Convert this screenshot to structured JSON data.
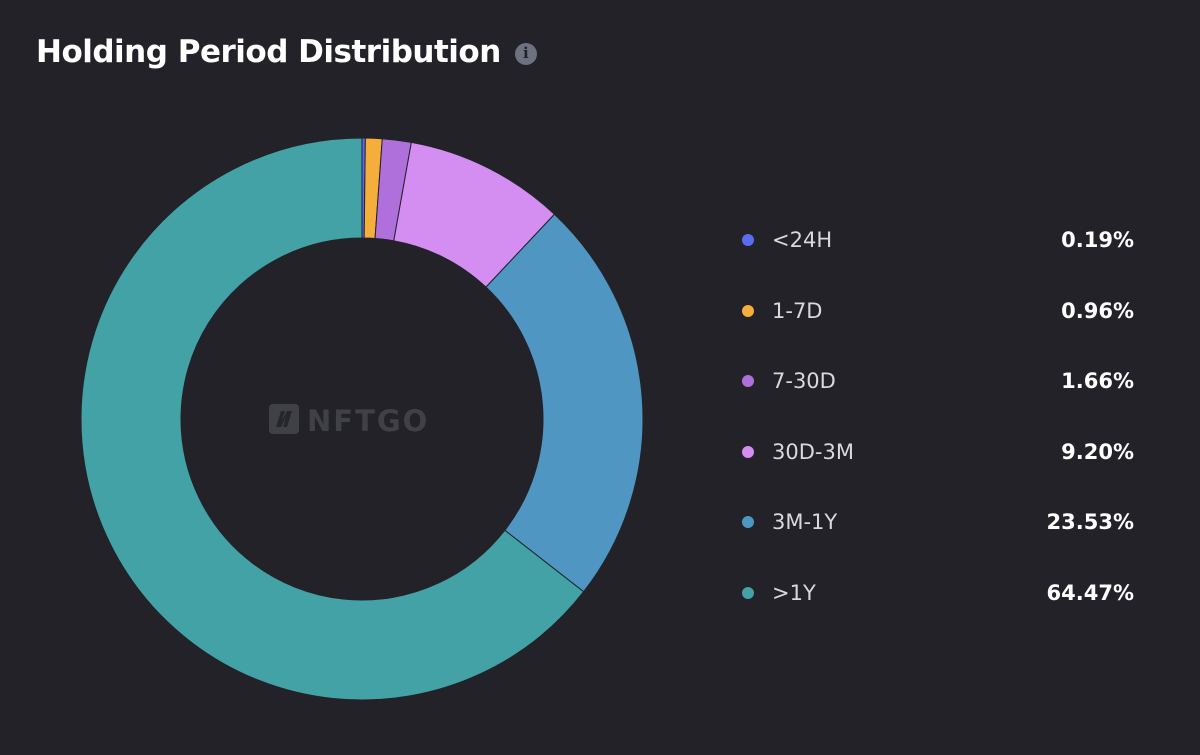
{
  "header": {
    "title": "Holding Period Distribution",
    "info_icon": "info-icon"
  },
  "watermark": {
    "text": "NFTGO"
  },
  "chart_data": {
    "type": "pie",
    "variant": "donut",
    "title": "Holding Period Distribution",
    "legend_position": "right",
    "unit": "%",
    "categories": [
      "<24H",
      "1-7D",
      "7-30D",
      "30D-3M",
      "3M-1Y",
      ">1Y"
    ],
    "values": [
      0.19,
      0.96,
      1.66,
      9.2,
      23.53,
      64.47
    ],
    "value_labels": [
      "0.19%",
      "0.96%",
      "1.66%",
      "9.20%",
      "23.53%",
      "64.47%"
    ],
    "colors": [
      "#5b6cf0",
      "#f5ad3c",
      "#b070dc",
      "#d48ef2",
      "#4f96c3",
      "#42a2a6"
    ]
  }
}
